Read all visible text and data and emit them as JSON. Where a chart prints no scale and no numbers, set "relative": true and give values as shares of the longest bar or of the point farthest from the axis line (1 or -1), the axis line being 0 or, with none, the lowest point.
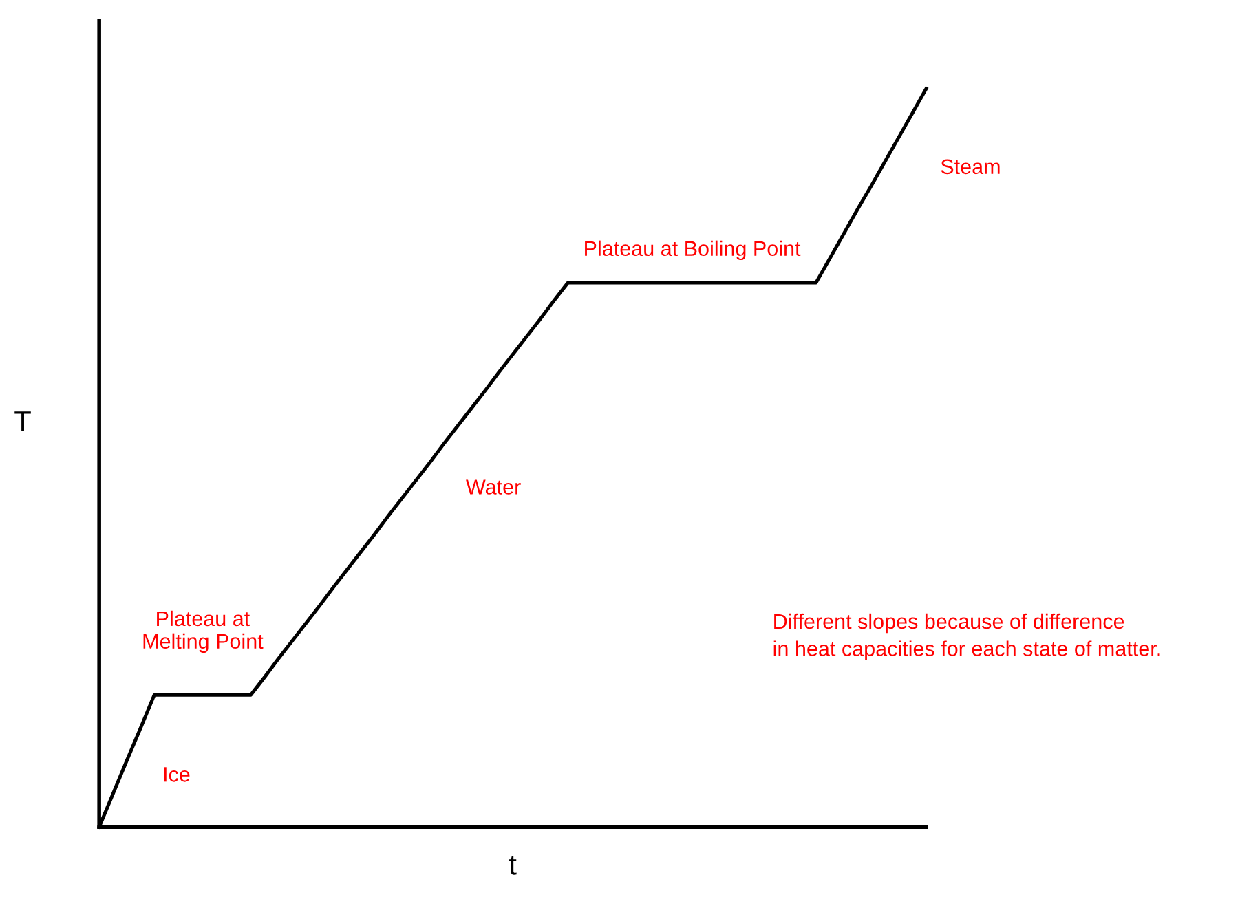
{
  "chart_data": {
    "type": "line",
    "relative": true,
    "xlabel": "t",
    "ylabel": "T",
    "tick_labels": false,
    "marker": "none",
    "line_style": "solid",
    "categories": [
      null,
      null,
      null,
      null,
      null,
      null,
      null,
      null,
      null,
      null,
      null,
      null,
      null,
      null,
      null,
      null,
      null,
      null,
      null,
      null,
      null,
      null,
      null,
      null,
      null,
      null,
      null,
      null,
      null,
      null,
      null,
      null,
      null,
      null,
      null,
      null,
      null,
      null,
      null,
      null,
      null,
      null,
      null,
      null,
      null,
      null,
      null,
      null,
      null,
      null,
      null,
      null,
      null,
      null,
      null,
      null,
      null,
      null,
      null,
      null,
      null
    ],
    "series": [
      {
        "color": "#000000",
        "values": [
          0,
          0.045,
          0.09,
          0.134,
          0.179,
          0.179,
          0.179,
          0.179,
          0.179,
          0.179,
          0.179,
          0.179,
          0.203,
          0.228,
          0.252,
          0.276,
          0.3,
          0.325,
          0.349,
          0.373,
          0.397,
          0.422,
          0.446,
          0.47,
          0.494,
          0.519,
          0.543,
          0.567,
          0.591,
          0.616,
          0.64,
          0.664,
          0.688,
          0.713,
          0.737,
          0.737,
          0.737,
          0.737,
          0.737,
          0.737,
          0.737,
          0.737,
          0.737,
          0.737,
          0.737,
          0.737,
          0.737,
          0.737,
          0.737,
          0.737,
          0.737,
          0.737,
          0.737,
          0.77,
          0.803,
          0.836,
          0.868,
          0.901,
          0.934,
          0.967,
          1
        ]
      }
    ],
    "annotations": [
      "Ice",
      "Plateau at\nMelting Point",
      "Water",
      "Plateau at Boiling Point",
      "Steam",
      "Different slopes because of difference\nin heat capacities for each state of matter."
    ]
  }
}
